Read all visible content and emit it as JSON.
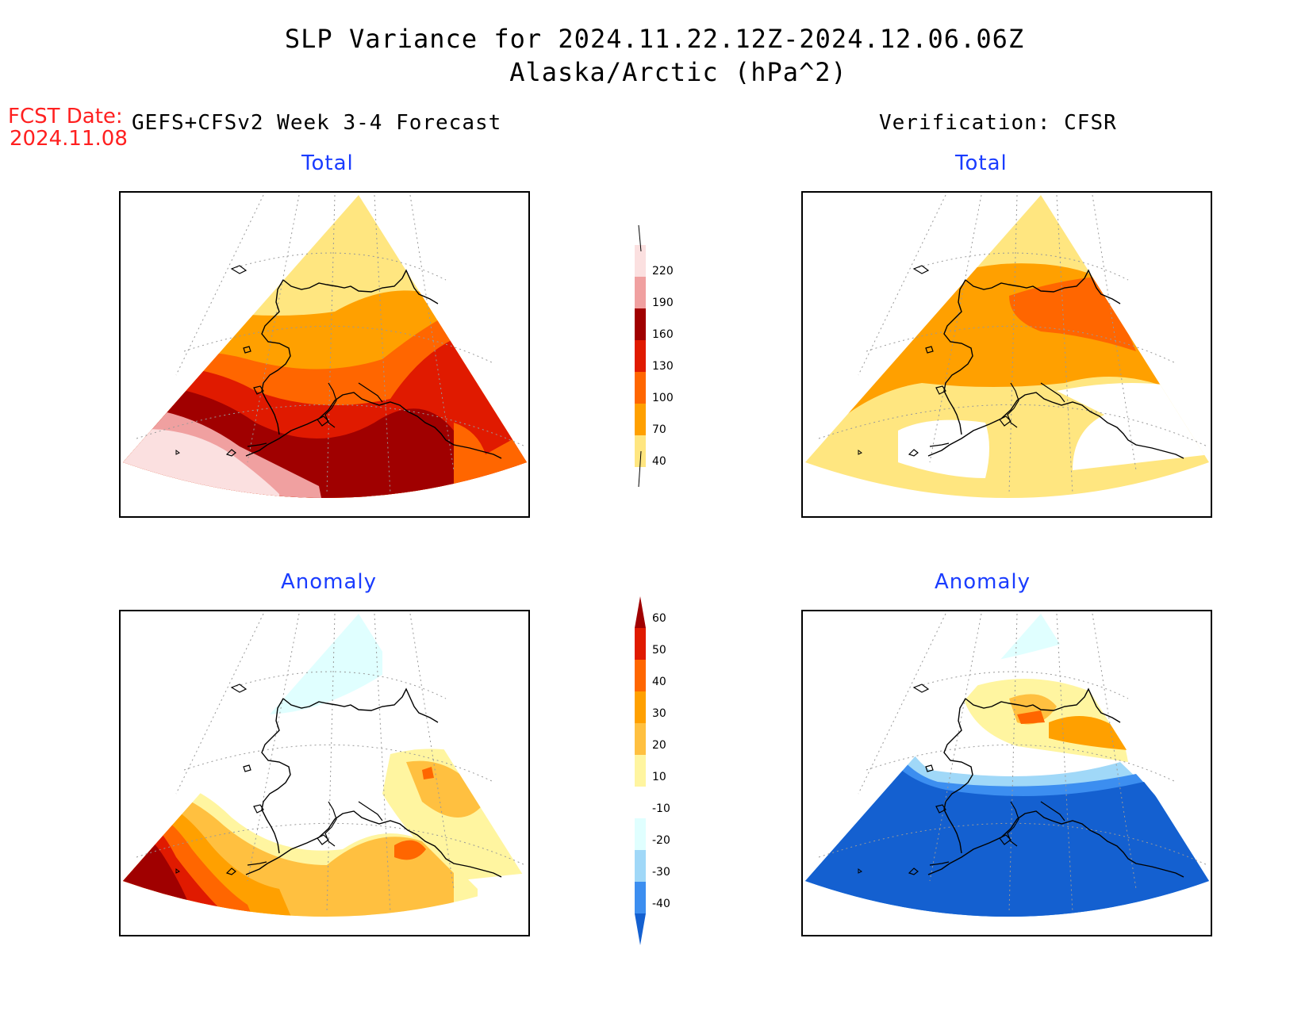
{
  "header": {
    "title": "SLP Variance for 2024.11.22.12Z-2024.12.06.06Z",
    "subtitle": "Alaska/Arctic (hPa^2)",
    "fcst_label": "FCST Date:",
    "fcst_date": "2024.11.08",
    "left_column": "GEFS+CFSv2 Week 3-4 Forecast",
    "right_column": "Verification: CFSR"
  },
  "panels": {
    "top_left": "Total",
    "top_right": "Total",
    "bottom_left": "Anomaly",
    "bottom_right": "Anomaly"
  },
  "colorbar_total": {
    "labels": [
      "220",
      "190",
      "160",
      "130",
      "100",
      "70",
      "40"
    ],
    "colors": [
      "#fbe0e0",
      "#f0a0a0",
      "#a00000",
      "#e01a00",
      "#ff6600",
      "#ffa000",
      "#ffe680"
    ]
  },
  "colorbar_anomaly": {
    "labels": [
      "60",
      "50",
      "40",
      "30",
      "20",
      "10",
      "-10",
      "-20",
      "-30",
      "-40"
    ],
    "colors": [
      "#a00000",
      "#e01a00",
      "#ff6600",
      "#ffa000",
      "#ffc040",
      "#fff5a0",
      "#ffffff",
      "#e0ffff",
      "#a0d8f8",
      "#3c8ef0",
      "#1460d0"
    ]
  },
  "colors": {
    "title_text": "#000000",
    "fcst_text": "#ff2020",
    "panel_title": "#1a3cff"
  }
}
